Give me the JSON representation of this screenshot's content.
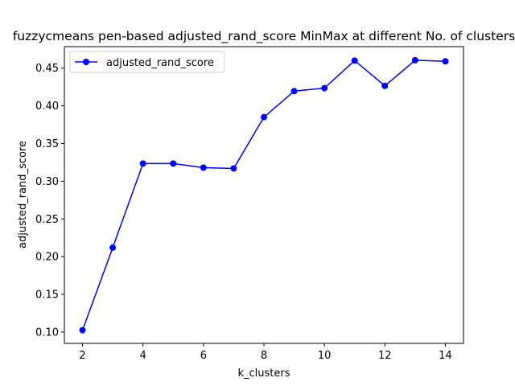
{
  "chart_data": {
    "type": "line",
    "title": "fuzzycmeans pen-based adjusted_rand_score MinMax at different No. of clusters",
    "xlabel": "k_clusters",
    "ylabel": "adjusted_rand_score",
    "x": [
      2,
      3,
      4,
      5,
      6,
      7,
      8,
      9,
      10,
      11,
      12,
      13,
      14
    ],
    "series": [
      {
        "name": "adjusted_rand_score",
        "color": "#0000ff",
        "marker": "circle",
        "values": [
          0.1025,
          0.212,
          0.3235,
          0.3235,
          0.318,
          0.317,
          0.385,
          0.4195,
          0.4235,
          0.46,
          0.4265,
          0.4605,
          0.459
        ]
      }
    ],
    "xlim": [
      1.4,
      14.6
    ],
    "ylim": [
      0.085,
      0.4785
    ],
    "xticks": [
      2,
      4,
      6,
      8,
      10,
      12,
      14
    ],
    "yticks": [
      0.1,
      0.15,
      0.2,
      0.25,
      0.3,
      0.35,
      0.4,
      0.45
    ],
    "xtick_labels": [
      "2",
      "4",
      "6",
      "8",
      "10",
      "12",
      "14"
    ],
    "ytick_labels": [
      "0.10",
      "0.15",
      "0.20",
      "0.25",
      "0.30",
      "0.35",
      "0.40",
      "0.45"
    ],
    "grid": false,
    "legend_position": "upper left"
  }
}
